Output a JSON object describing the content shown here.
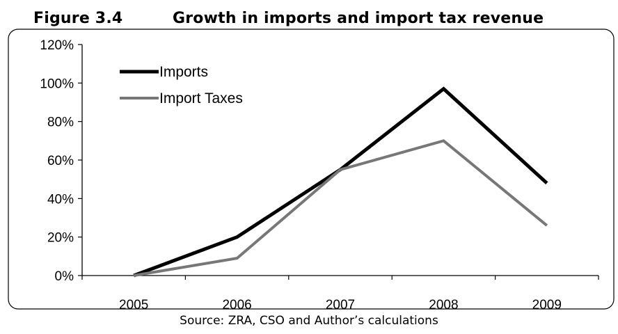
{
  "figure": {
    "number": "Figure 3.4",
    "title": "Growth in imports and import tax revenue",
    "source": "Source: ZRA, CSO and Author’s calculations"
  },
  "chart_data": {
    "type": "line",
    "title": "Growth in imports and import tax revenue",
    "xlabel": "",
    "ylabel": "",
    "categories": [
      "2005",
      "2006",
      "2007",
      "2008",
      "2009"
    ],
    "ylim": [
      0,
      120
    ],
    "yticks": [
      "0%",
      "20%",
      "40%",
      "60%",
      "80%",
      "100%",
      "120%"
    ],
    "grid": false,
    "legend_position": "top-left",
    "series": [
      {
        "name": "Imports",
        "values": [
          0,
          20,
          55,
          97,
          48
        ],
        "color": "#000000"
      },
      {
        "name": "Import Taxes",
        "values": [
          0,
          9,
          55,
          70,
          26
        ],
        "color": "#777777"
      }
    ]
  }
}
